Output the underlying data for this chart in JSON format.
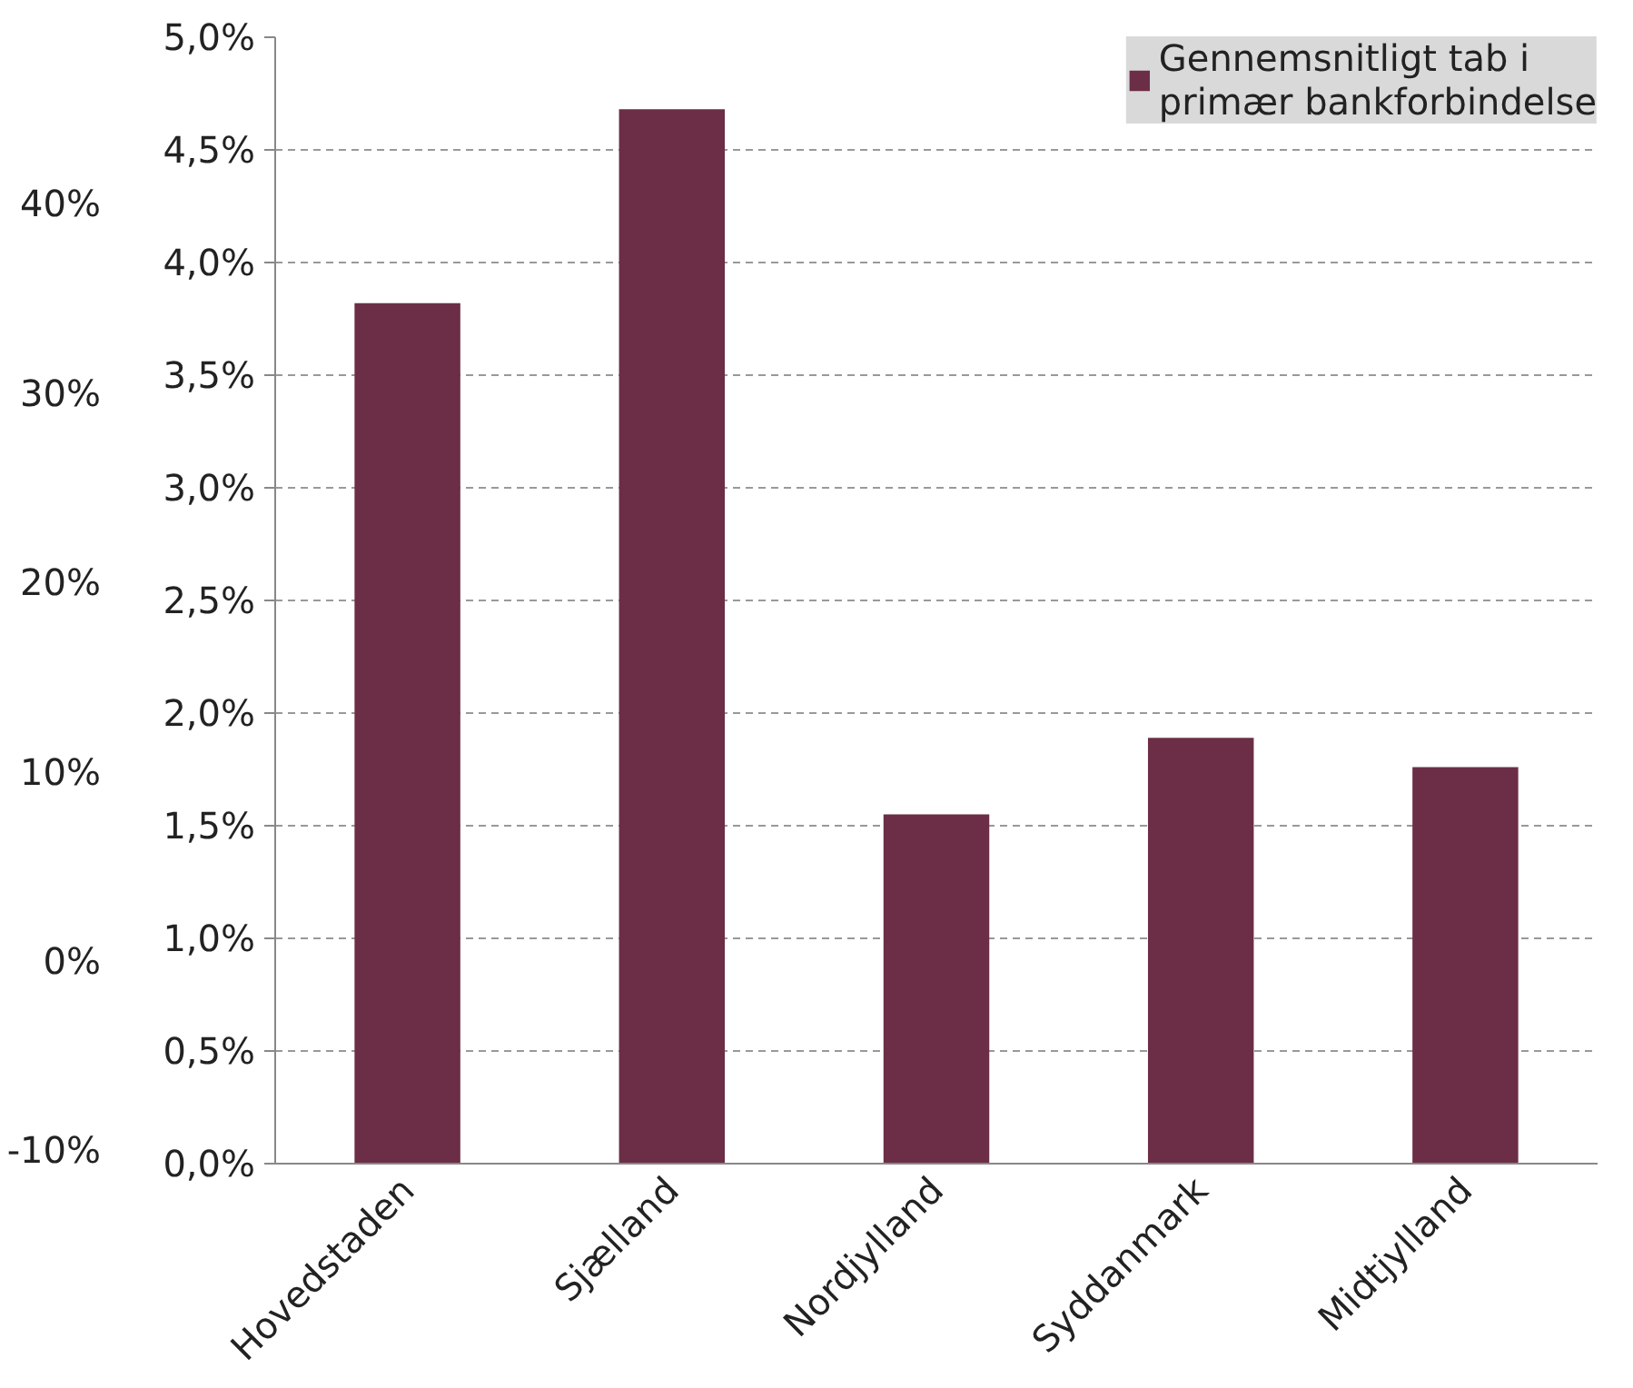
{
  "chart_data": {
    "type": "bar",
    "categories": [
      "Hovedstaden",
      "Sjælland",
      "Nordjylland",
      "Syddanmark",
      "Midtjylland"
    ],
    "series": [
      {
        "name": "Gennemsnitligt tab i primær bankforbindelse",
        "color": "#6b2e46",
        "values": [
          3.82,
          4.68,
          1.55,
          1.89,
          1.76
        ]
      }
    ],
    "ylim": [
      0,
      5
    ],
    "yticks": [
      {
        "value": 0,
        "label": "0,0%"
      },
      {
        "value": 0.5,
        "label": "0,5%"
      },
      {
        "value": 1,
        "label": "1,0%"
      },
      {
        "value": 1.5,
        "label": "1,5%"
      },
      {
        "value": 2,
        "label": "2,0%"
      },
      {
        "value": 2.5,
        "label": "2,5%"
      },
      {
        "value": 3,
        "label": "3,0%"
      },
      {
        "value": 3.5,
        "label": "3,5%"
      },
      {
        "value": 4,
        "label": "4,0%"
      },
      {
        "value": 4.5,
        "label": "4,5%"
      },
      {
        "value": 5,
        "label": "5,0%"
      }
    ],
    "y2lim": [
      -10.7,
      48.8
    ],
    "y2ticks": [
      {
        "value": -10,
        "label": "-10%"
      },
      {
        "value": 0,
        "label": "0%"
      },
      {
        "value": 10,
        "label": "10%"
      },
      {
        "value": 20,
        "label": "20%"
      },
      {
        "value": 30,
        "label": "30%"
      },
      {
        "value": 40,
        "label": "40%"
      }
    ],
    "grid": "y",
    "legend": "top right"
  }
}
